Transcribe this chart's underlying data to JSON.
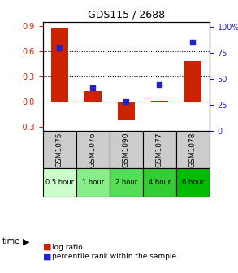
{
  "title": "GDS115 / 2688",
  "categories": [
    "GSM1075",
    "GSM1076",
    "GSM1090",
    "GSM1077",
    "GSM1078"
  ],
  "time_labels": [
    "0.5 hour",
    "1 hour",
    "2 hour",
    "4 hour",
    "6 hour"
  ],
  "time_colors": [
    "#ccffcc",
    "#88ee88",
    "#55dd55",
    "#33cc33",
    "#00bb00"
  ],
  "log_ratios": [
    0.88,
    0.13,
    -0.22,
    0.01,
    0.48
  ],
  "percentile_ranks": [
    80,
    42,
    28,
    45,
    85
  ],
  "bar_color": "#cc2200",
  "dot_color": "#2222cc",
  "ylim_left": [
    -0.35,
    0.95
  ],
  "ylim_right": [
    0,
    105
  ],
  "left_ticks": [
    -0.3,
    0.0,
    0.3,
    0.6,
    0.9
  ],
  "right_ticks": [
    0,
    25,
    50,
    75,
    100
  ],
  "hlines": [
    0.3,
    0.6
  ],
  "hline_zero": 0.0,
  "grid_color": "#000000",
  "zero_line_color": "#cc2200",
  "sample_box_color": "#cccccc",
  "bar_width": 0.5
}
